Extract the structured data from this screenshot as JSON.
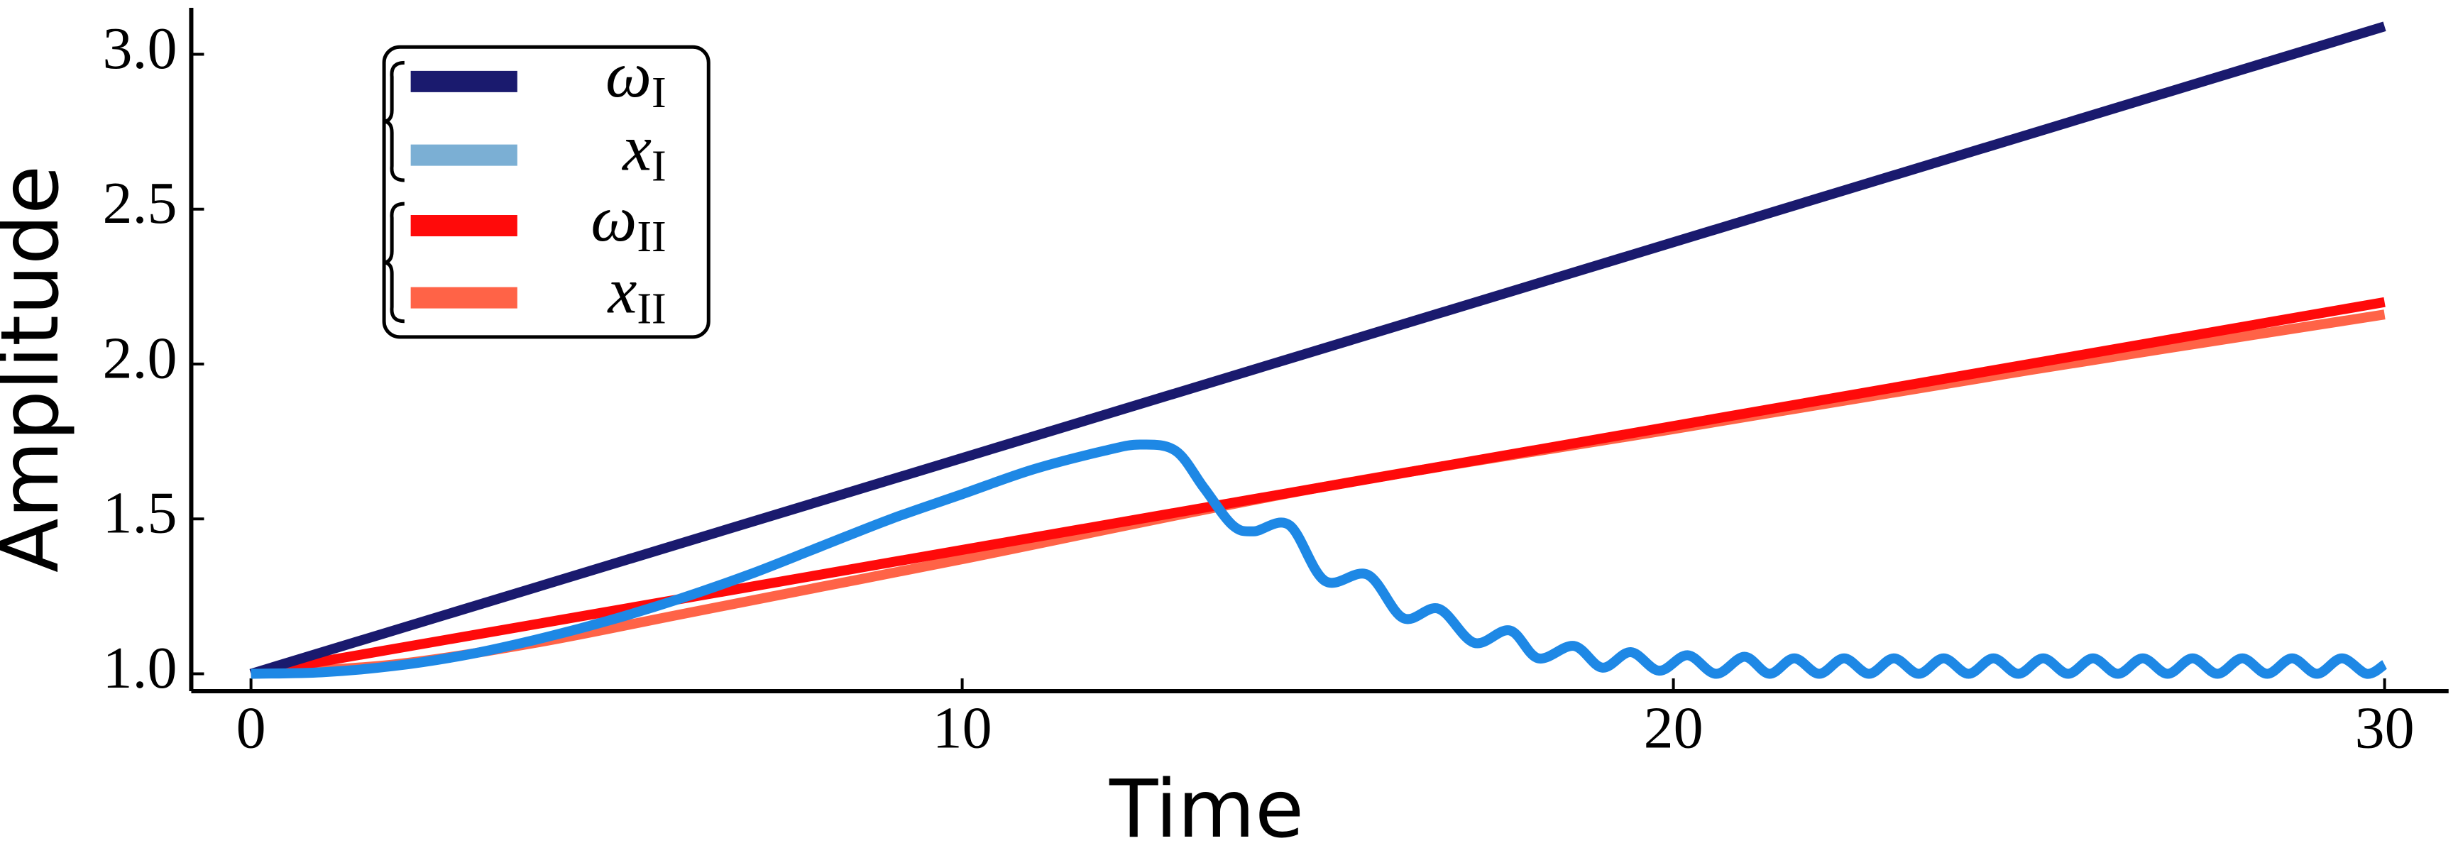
{
  "chart_data": {
    "type": "line",
    "xlabel": "Time",
    "ylabel": "Amplitude",
    "xlim": [
      -0.84,
      30.9
    ],
    "ylim": [
      0.944,
      3.15
    ],
    "xticks": [
      0,
      10,
      20,
      30
    ],
    "yticks": [
      {
        "value": 1.0,
        "label": "1.0"
      },
      {
        "value": 1.5,
        "label": "1.5"
      },
      {
        "value": 2.0,
        "label": "2.0"
      },
      {
        "value": 2.5,
        "label": "2.5"
      },
      {
        "value": 3.0,
        "label": "3.0"
      }
    ],
    "legend": "upper left",
    "series": [
      {
        "name": "ω",
        "subscript": "I",
        "color": "#1a1a6e",
        "x": [
          0,
          30
        ],
        "values": [
          1.0,
          3.09
        ]
      },
      {
        "name": "x",
        "subscript": "I",
        "color": "#1e88e5",
        "legend_color": "#7bafd4",
        "x": [
          0,
          1,
          2,
          3,
          4,
          5,
          6,
          7,
          8,
          9,
          10,
          11,
          12,
          12.5,
          13.0,
          13.4,
          13.8,
          14.1,
          14.6,
          15.1,
          15.7,
          16.2,
          16.7,
          17.2,
          17.7,
          18.1,
          18.6,
          19.0,
          19.4,
          19.8,
          20.2,
          20.6,
          21.0,
          21.35,
          21.7,
          22.05,
          22.4,
          22.75,
          23.1,
          23.45,
          23.8,
          24.15,
          24.5,
          24.85,
          25.2,
          25.55,
          25.9,
          26.25,
          26.6,
          26.95,
          27.3,
          27.65,
          28.0,
          28.35,
          28.7,
          29.05,
          29.4,
          29.75,
          30
        ],
        "values": [
          1.0,
          1.005,
          1.025,
          1.06,
          1.11,
          1.17,
          1.24,
          1.32,
          1.41,
          1.5,
          1.58,
          1.66,
          1.72,
          1.74,
          1.72,
          1.6,
          1.48,
          1.46,
          1.48,
          1.3,
          1.32,
          1.18,
          1.21,
          1.1,
          1.14,
          1.05,
          1.09,
          1.02,
          1.07,
          1.01,
          1.06,
          1.0,
          1.055,
          1.0,
          1.05,
          1.0,
          1.05,
          1.0,
          1.05,
          1.0,
          1.05,
          1.0,
          1.05,
          1.0,
          1.05,
          1.0,
          1.05,
          1.0,
          1.05,
          1.0,
          1.05,
          1.0,
          1.05,
          1.0,
          1.05,
          1.0,
          1.05,
          1.0,
          1.03
        ]
      },
      {
        "name": "ω",
        "subscript": "II",
        "color": "#ff0a0a",
        "x": [
          0,
          30
        ],
        "values": [
          1.0,
          2.2
        ]
      },
      {
        "name": "x",
        "subscript": "II",
        "color": "#ff6347",
        "x": [
          0,
          2,
          4,
          6,
          8,
          10,
          15,
          20,
          25,
          30
        ],
        "values": [
          1.0,
          1.03,
          1.1,
          1.19,
          1.28,
          1.37,
          1.6,
          1.79,
          1.98,
          2.16
        ]
      }
    ]
  }
}
